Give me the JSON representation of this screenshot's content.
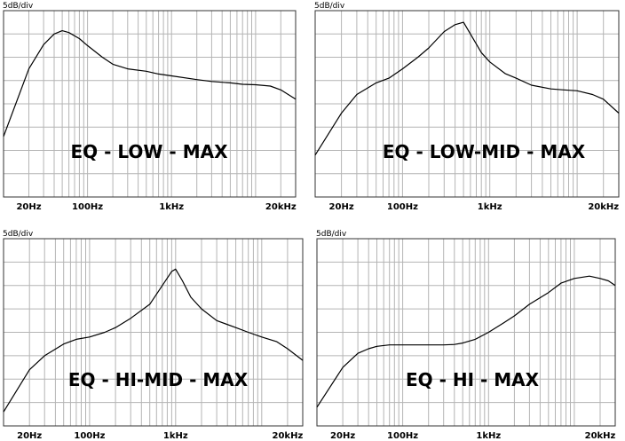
{
  "chart_data": [
    {
      "type": "line",
      "title": "EQ - LOW - MAX",
      "unit_label": "5dB/div",
      "x_scale": "log",
      "xlim": [
        10,
        30000
      ],
      "ylim": [
        -30,
        10
      ],
      "grid": true,
      "x_tick_labels": [
        {
          "value": 20,
          "label": "20Hz"
        },
        {
          "value": 100,
          "label": "100Hz"
        },
        {
          "value": 1000,
          "label": "1kHz"
        },
        {
          "value": 20000,
          "label": "20kHz"
        }
      ],
      "series": [
        {
          "x": [
            10,
            20,
            30,
            40,
            50,
            60,
            80,
            100,
            150,
            200,
            300,
            500,
            700,
            1000,
            2000,
            3000,
            5000,
            7000,
            10000,
            15000,
            20000,
            30000
          ],
          "y": [
            -17,
            -2.5,
            2.7,
            5,
            5.7,
            5.3,
            4,
            2.5,
            0,
            -1.5,
            -2.5,
            -3,
            -3.6,
            -4,
            -4.8,
            -5.2,
            -5.5,
            -5.8,
            -5.9,
            -6.2,
            -7,
            -9
          ]
        }
      ]
    },
    {
      "type": "line",
      "title": "EQ - LOW-MID - MAX",
      "unit_label": "5dB/div",
      "x_scale": "log",
      "xlim": [
        10,
        30000
      ],
      "ylim": [
        -30,
        10
      ],
      "grid": true,
      "x_tick_labels": [
        {
          "value": 20,
          "label": "20Hz"
        },
        {
          "value": 100,
          "label": "100Hz"
        },
        {
          "value": 1000,
          "label": "1kHz"
        },
        {
          "value": 20000,
          "label": "20kHz"
        }
      ],
      "series": [
        {
          "x": [
            10,
            20,
            30,
            50,
            70,
            100,
            150,
            200,
            300,
            400,
            500,
            600,
            800,
            1000,
            1500,
            2000,
            3000,
            5000,
            7000,
            10000,
            15000,
            20000,
            30000
          ],
          "y": [
            -21,
            -12,
            -8,
            -5.5,
            -4.5,
            -2.5,
            0,
            2,
            5.5,
            7,
            7.5,
            5,
            1,
            -1,
            -3.5,
            -4.5,
            -6,
            -6.8,
            -7,
            -7.2,
            -8,
            -9,
            -12
          ]
        }
      ]
    },
    {
      "type": "line",
      "title": "EQ - HI-MID - MAX",
      "unit_label": "5dB/div",
      "x_scale": "log",
      "xlim": [
        10,
        30000
      ],
      "ylim": [
        -30,
        10
      ],
      "grid": true,
      "x_tick_labels": [
        {
          "value": 20,
          "label": "20Hz"
        },
        {
          "value": 100,
          "label": "100Hz"
        },
        {
          "value": 1000,
          "label": "1kHz"
        },
        {
          "value": 20000,
          "label": "20kHz"
        }
      ],
      "series": [
        {
          "x": [
            10,
            20,
            30,
            50,
            70,
            100,
            150,
            200,
            300,
            500,
            700,
            900,
            1000,
            1200,
            1500,
            2000,
            3000,
            5000,
            7000,
            10000,
            15000,
            20000,
            30000
          ],
          "y": [
            -27,
            -18,
            -15,
            -12.5,
            -11.5,
            -11,
            -10,
            -9,
            -7,
            -4,
            0,
            3,
            3.5,
            1,
            -2.5,
            -5,
            -7.5,
            -9,
            -10,
            -11,
            -12,
            -13.5,
            -16
          ]
        }
      ]
    },
    {
      "type": "line",
      "title": "EQ - HI - MAX",
      "unit_label": "5dB/div",
      "x_scale": "log",
      "xlim": [
        10,
        30000
      ],
      "ylim": [
        -30,
        10
      ],
      "grid": true,
      "x_tick_labels": [
        {
          "value": 20,
          "label": "20Hz"
        },
        {
          "value": 100,
          "label": "100Hz"
        },
        {
          "value": 1000,
          "label": "1kHz"
        },
        {
          "value": 20000,
          "label": "20kHz"
        }
      ],
      "series": [
        {
          "x": [
            10,
            20,
            30,
            40,
            50,
            70,
            100,
            150,
            200,
            300,
            400,
            500,
            700,
            1000,
            1500,
            2000,
            3000,
            5000,
            7000,
            10000,
            15000,
            20000,
            25000,
            30000
          ],
          "y": [
            -26,
            -17.5,
            -14.5,
            -13.5,
            -13,
            -12.7,
            -12.7,
            -12.7,
            -12.7,
            -12.7,
            -12.6,
            -12.3,
            -11.5,
            -10,
            -8,
            -6.5,
            -4,
            -1.5,
            0.5,
            1.5,
            2,
            1.5,
            1,
            0
          ]
        }
      ]
    }
  ]
}
